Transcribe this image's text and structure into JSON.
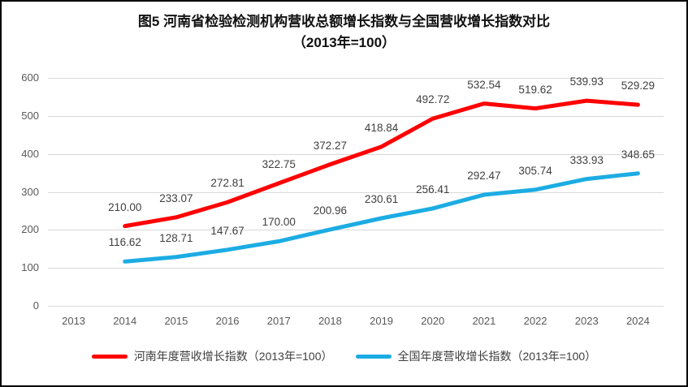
{
  "title": {
    "line1": "图5  河南省检验检测机构营收总额增长指数与全国营收增长指数对比",
    "line2": "（2013年=100）"
  },
  "chart_data": {
    "type": "line",
    "categories": [
      "2013",
      "2014",
      "2015",
      "2016",
      "2017",
      "2018",
      "2019",
      "2020",
      "2021",
      "2022",
      "2023",
      "2024"
    ],
    "series": [
      {
        "name": "河南年度营收增长指数（2013年=100）",
        "color": "#ff0000",
        "start_index": 1,
        "values": [
          210.0,
          233.07,
          272.81,
          322.75,
          372.27,
          418.84,
          492.72,
          532.54,
          519.62,
          539.93,
          529.29
        ]
      },
      {
        "name": "全国年度营收增长指数（2013年=100）",
        "color": "#1cace3",
        "start_index": 1,
        "values": [
          116.62,
          128.71,
          147.67,
          170.0,
          200.96,
          230.61,
          256.41,
          292.47,
          305.74,
          333.93,
          348.65
        ]
      }
    ],
    "ylim": [
      0,
      600
    ],
    "ytick_interval": 100,
    "grid": true,
    "data_labels": true,
    "data_label_decimals": 2,
    "legend_position": "bottom"
  },
  "colors": {
    "grid": "#d9d9d9",
    "axis_text": "#595959",
    "label_text": "#404040",
    "border": "#000000",
    "background": "#ffffff"
  }
}
